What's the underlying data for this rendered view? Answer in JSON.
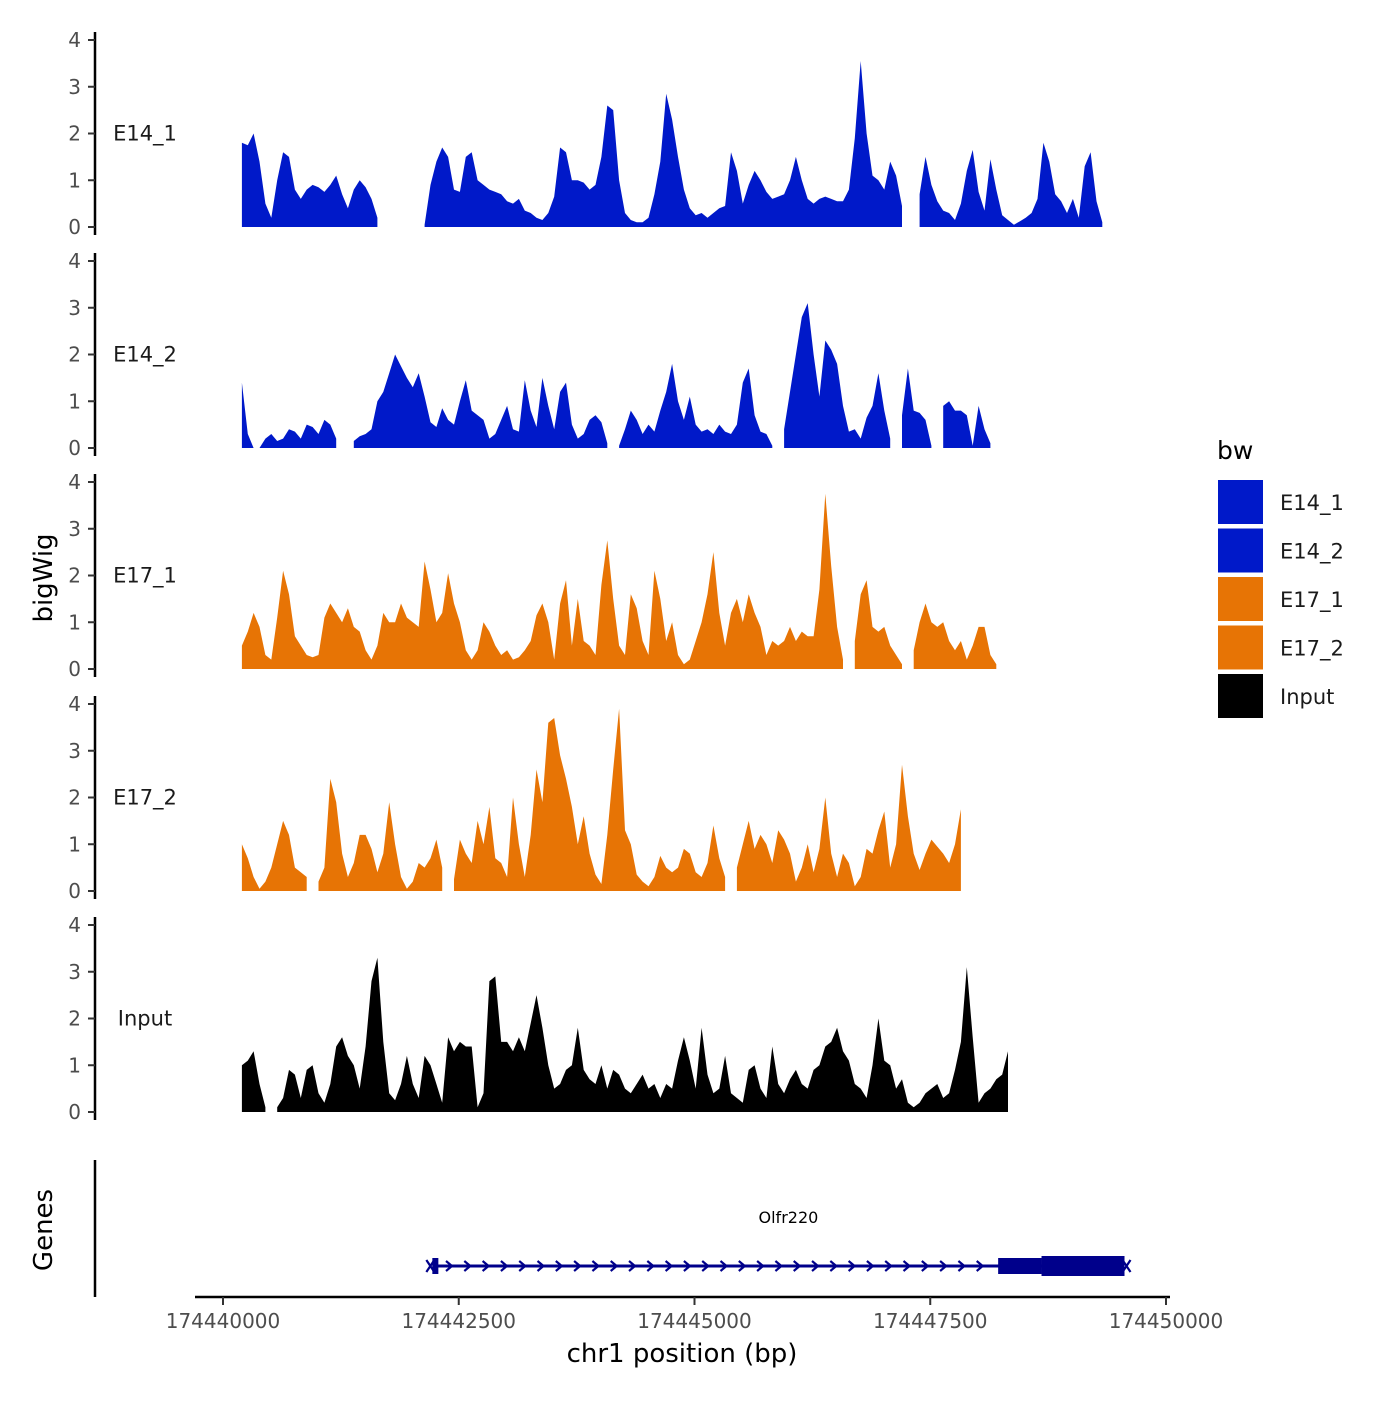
{
  "chart_data": {
    "type": "area",
    "y_axis_title": "bigWig",
    "x_axis_title": "chr1 position (bp)",
    "xlim": [
      174439800,
      174450000
    ],
    "ylim": [
      0,
      4
    ],
    "x_ticks": [
      174440000,
      174442500,
      174445000,
      174447500,
      174450000
    ],
    "x_tick_labels": [
      "174440000",
      "174442500",
      "174445000",
      "174447500",
      "174450000"
    ],
    "y_ticks": [
      0,
      1,
      2,
      3,
      4
    ],
    "y_tick_labels": [
      "0",
      "1",
      "2",
      "3",
      "4"
    ],
    "legend": {
      "title": "bw",
      "position": "right",
      "entries": [
        {
          "label": "E14_1",
          "color": "#0019C9"
        },
        {
          "label": "E14_2",
          "color": "#0019C9"
        },
        {
          "label": "E17_1",
          "color": "#E77405"
        },
        {
          "label": "E17_2",
          "color": "#E77405"
        },
        {
          "label": "Input",
          "color": "#000000"
        }
      ]
    },
    "series": [
      {
        "name": "E14_1",
        "color": "#0019C9",
        "x_start": 174440200,
        "x_step": 62.5,
        "values": [
          1.8,
          1.75,
          2.0,
          1.4,
          0.5,
          0.2,
          1.0,
          1.6,
          1.5,
          0.8,
          0.6,
          0.8,
          0.9,
          0.85,
          0.75,
          0.9,
          1.1,
          0.7,
          0.4,
          0.8,
          1.0,
          0.85,
          0.6,
          0.2,
          null,
          null,
          null,
          null,
          null,
          null,
          null,
          0.05,
          0.9,
          1.4,
          1.7,
          1.5,
          0.8,
          0.75,
          1.5,
          1.6,
          1.0,
          0.9,
          0.8,
          0.75,
          0.7,
          0.55,
          0.5,
          0.6,
          0.35,
          0.3,
          0.2,
          0.15,
          0.3,
          0.65,
          1.7,
          1.6,
          1.0,
          1.0,
          0.95,
          0.8,
          0.9,
          1.5,
          2.6,
          2.5,
          1.0,
          0.3,
          0.15,
          0.1,
          0.1,
          0.2,
          0.7,
          1.4,
          2.85,
          2.3,
          1.5,
          0.8,
          0.4,
          0.25,
          0.3,
          0.2,
          0.3,
          0.4,
          0.45,
          1.6,
          1.2,
          0.5,
          0.9,
          1.2,
          1.0,
          0.75,
          0.6,
          0.65,
          0.7,
          1.0,
          1.5,
          1.0,
          0.6,
          0.5,
          0.6,
          0.65,
          0.6,
          0.55,
          0.55,
          0.8,
          1.9,
          3.55,
          2.0,
          1.1,
          1.0,
          0.8,
          1.4,
          1.1,
          0.45,
          null,
          null,
          0.7,
          1.5,
          0.9,
          0.55,
          0.35,
          0.3,
          0.15,
          0.5,
          1.2,
          1.65,
          0.75,
          0.35,
          1.45,
          0.8,
          0.25,
          0.15,
          0.05,
          0.12,
          0.2,
          0.3,
          0.6,
          1.8,
          1.4,
          0.7,
          0.55,
          0.3,
          0.6,
          0.2,
          1.3,
          1.6,
          0.55,
          0.1
        ],
        "x_end": 174449560
      },
      {
        "name": "E14_2",
        "color": "#0019C9",
        "x_start": 174440200,
        "x_step": 62.5,
        "values": [
          1.4,
          0.3,
          0.0,
          0.0,
          0.2,
          0.3,
          0.15,
          0.2,
          0.4,
          0.35,
          0.2,
          0.5,
          0.45,
          0.3,
          0.6,
          0.5,
          0.2,
          null,
          null,
          0.15,
          0.25,
          0.3,
          0.4,
          1.0,
          1.2,
          1.6,
          2.0,
          1.75,
          1.5,
          1.3,
          1.6,
          1.1,
          0.55,
          0.45,
          0.85,
          0.6,
          0.5,
          1.0,
          1.45,
          0.8,
          0.7,
          0.6,
          0.2,
          0.3,
          0.6,
          0.9,
          0.4,
          0.35,
          1.45,
          0.8,
          0.45,
          1.5,
          0.9,
          0.4,
          1.2,
          1.4,
          0.5,
          0.2,
          0.3,
          0.6,
          0.7,
          0.55,
          0.1,
          null,
          0.05,
          0.4,
          0.8,
          0.6,
          0.3,
          0.5,
          0.35,
          0.8,
          1.2,
          1.8,
          1.0,
          0.6,
          1.1,
          0.5,
          0.35,
          0.4,
          0.3,
          0.5,
          0.35,
          0.3,
          0.5,
          1.4,
          1.7,
          0.7,
          0.35,
          0.3,
          0.05,
          null,
          0.4,
          1.2,
          2.0,
          2.8,
          3.1,
          2.0,
          1.1,
          2.3,
          2.1,
          1.8,
          0.9,
          0.35,
          0.4,
          0.2,
          0.65,
          0.9,
          1.6,
          0.8,
          0.2,
          null,
          0.7,
          1.7,
          0.8,
          0.75,
          0.6,
          0.05,
          null,
          0.9,
          1.0,
          0.8,
          0.8,
          0.7,
          0.05,
          0.9,
          0.4,
          0.1
        ],
        "x_end": 174449560
      },
      {
        "name": "E17_1",
        "color": "#E77405",
        "x_start": 174440200,
        "x_step": 62.5,
        "values": [
          0.5,
          0.8,
          1.2,
          0.9,
          0.3,
          0.2,
          1.1,
          2.1,
          1.6,
          0.7,
          0.5,
          0.3,
          0.25,
          0.3,
          1.1,
          1.4,
          1.2,
          1.0,
          1.3,
          0.9,
          0.8,
          0.4,
          0.2,
          0.5,
          1.2,
          1.0,
          1.0,
          1.4,
          1.1,
          1.0,
          0.9,
          2.3,
          1.7,
          1.0,
          1.2,
          2.05,
          1.4,
          1.0,
          0.4,
          0.2,
          0.4,
          1.0,
          0.8,
          0.5,
          0.3,
          0.4,
          0.2,
          0.25,
          0.4,
          0.6,
          1.15,
          1.4,
          1.0,
          0.2,
          1.4,
          1.9,
          0.5,
          1.5,
          0.6,
          0.5,
          0.3,
          1.8,
          2.75,
          1.5,
          0.5,
          0.3,
          1.6,
          1.3,
          0.6,
          0.3,
          2.1,
          1.5,
          0.6,
          1.0,
          0.3,
          0.1,
          0.2,
          0.6,
          1.0,
          1.6,
          2.5,
          1.2,
          0.5,
          1.2,
          1.5,
          1.0,
          1.6,
          1.2,
          0.9,
          0.3,
          0.6,
          0.5,
          0.6,
          0.9,
          0.6,
          0.8,
          0.7,
          0.7,
          1.7,
          3.75,
          2.2,
          0.9,
          0.2,
          null,
          0.6,
          1.6,
          1.9,
          0.9,
          0.8,
          0.9,
          0.5,
          0.3,
          0.1,
          null,
          0.4,
          1.0,
          1.4,
          1.0,
          0.9,
          1.0,
          0.6,
          0.4,
          0.6,
          0.2,
          0.5,
          0.9,
          0.9,
          0.3,
          0.1
        ]
      },
      {
        "name": "E17_2",
        "color": "#E77405",
        "x_start": 174440200,
        "x_step": 62.5,
        "values": [
          1.0,
          0.7,
          0.3,
          0.05,
          0.2,
          0.5,
          1.0,
          1.5,
          1.2,
          0.5,
          0.4,
          0.3,
          null,
          0.2,
          0.5,
          2.4,
          1.9,
          0.8,
          0.3,
          0.6,
          1.2,
          1.2,
          0.9,
          0.4,
          0.8,
          1.9,
          1.0,
          0.3,
          0.05,
          0.2,
          0.6,
          0.5,
          0.7,
          1.1,
          0.5,
          null,
          0.25,
          1.1,
          0.8,
          0.6,
          1.5,
          1.0,
          1.8,
          0.7,
          0.6,
          0.3,
          2.0,
          1.0,
          0.3,
          1.2,
          2.6,
          1.9,
          3.6,
          3.7,
          2.9,
          2.4,
          1.8,
          1.0,
          1.6,
          0.8,
          0.35,
          0.15,
          1.2,
          2.6,
          3.9,
          1.3,
          1.0,
          0.35,
          0.2,
          0.1,
          0.3,
          0.75,
          0.5,
          0.4,
          0.5,
          0.9,
          0.8,
          0.4,
          0.3,
          0.6,
          1.4,
          0.7,
          0.3,
          null,
          0.5,
          1.0,
          1.5,
          0.9,
          1.2,
          1.0,
          0.6,
          1.3,
          1.1,
          0.8,
          0.2,
          0.5,
          1.0,
          0.4,
          0.9,
          2.0,
          0.8,
          0.3,
          0.8,
          0.6,
          0.1,
          0.3,
          0.9,
          0.8,
          1.3,
          1.7,
          0.5,
          1.0,
          2.7,
          1.6,
          0.8,
          0.45,
          0.8,
          1.1,
          0.95,
          0.8,
          0.6,
          1.0,
          1.75
        ]
      },
      {
        "name": "Input",
        "color": "#000000",
        "x_start": 174440200,
        "x_step": 62.5,
        "values": [
          1.0,
          1.1,
          1.3,
          0.6,
          0.1,
          null,
          0.1,
          0.3,
          0.9,
          0.8,
          0.3,
          0.9,
          1.0,
          0.4,
          0.2,
          0.6,
          1.4,
          1.6,
          1.2,
          1.0,
          0.5,
          1.4,
          2.8,
          3.3,
          1.5,
          0.4,
          0.25,
          0.6,
          1.2,
          0.6,
          0.3,
          1.2,
          1.0,
          0.6,
          0.2,
          1.6,
          1.3,
          1.5,
          1.4,
          1.4,
          0.1,
          0.4,
          2.8,
          2.9,
          1.5,
          1.5,
          1.3,
          1.6,
          1.3,
          1.9,
          2.5,
          1.8,
          1.0,
          0.5,
          0.6,
          0.9,
          1.0,
          1.8,
          0.9,
          0.7,
          0.6,
          1.0,
          0.5,
          0.9,
          0.8,
          0.5,
          0.4,
          0.6,
          0.8,
          0.5,
          0.6,
          0.3,
          0.6,
          0.5,
          1.1,
          1.6,
          1.1,
          0.5,
          1.8,
          0.8,
          0.4,
          0.5,
          1.2,
          0.4,
          0.3,
          0.2,
          0.9,
          1.0,
          0.5,
          0.3,
          1.4,
          0.6,
          0.4,
          0.7,
          0.9,
          0.6,
          0.5,
          0.9,
          1.0,
          1.4,
          1.5,
          1.8,
          1.3,
          1.1,
          0.6,
          0.5,
          0.3,
          1.0,
          2.0,
          1.1,
          1.0,
          0.5,
          0.7,
          0.2,
          0.1,
          0.2,
          0.4,
          0.5,
          0.6,
          0.3,
          0.4,
          0.9,
          1.5,
          3.1,
          1.6,
          0.2,
          0.4,
          0.5,
          0.7,
          0.8,
          1.3
        ]
      }
    ],
    "gene_track": {
      "label": "Genes",
      "gene_name": "Olfr220",
      "strand": "+",
      "start": 174442220,
      "end": 174449560,
      "thin_start": 174442280,
      "exons": [
        {
          "start": 174442220,
          "end": 174442280
        },
        {
          "start": 174448220,
          "end": 174448680
        },
        {
          "start": 174448680,
          "end": 174449560
        }
      ]
    }
  }
}
